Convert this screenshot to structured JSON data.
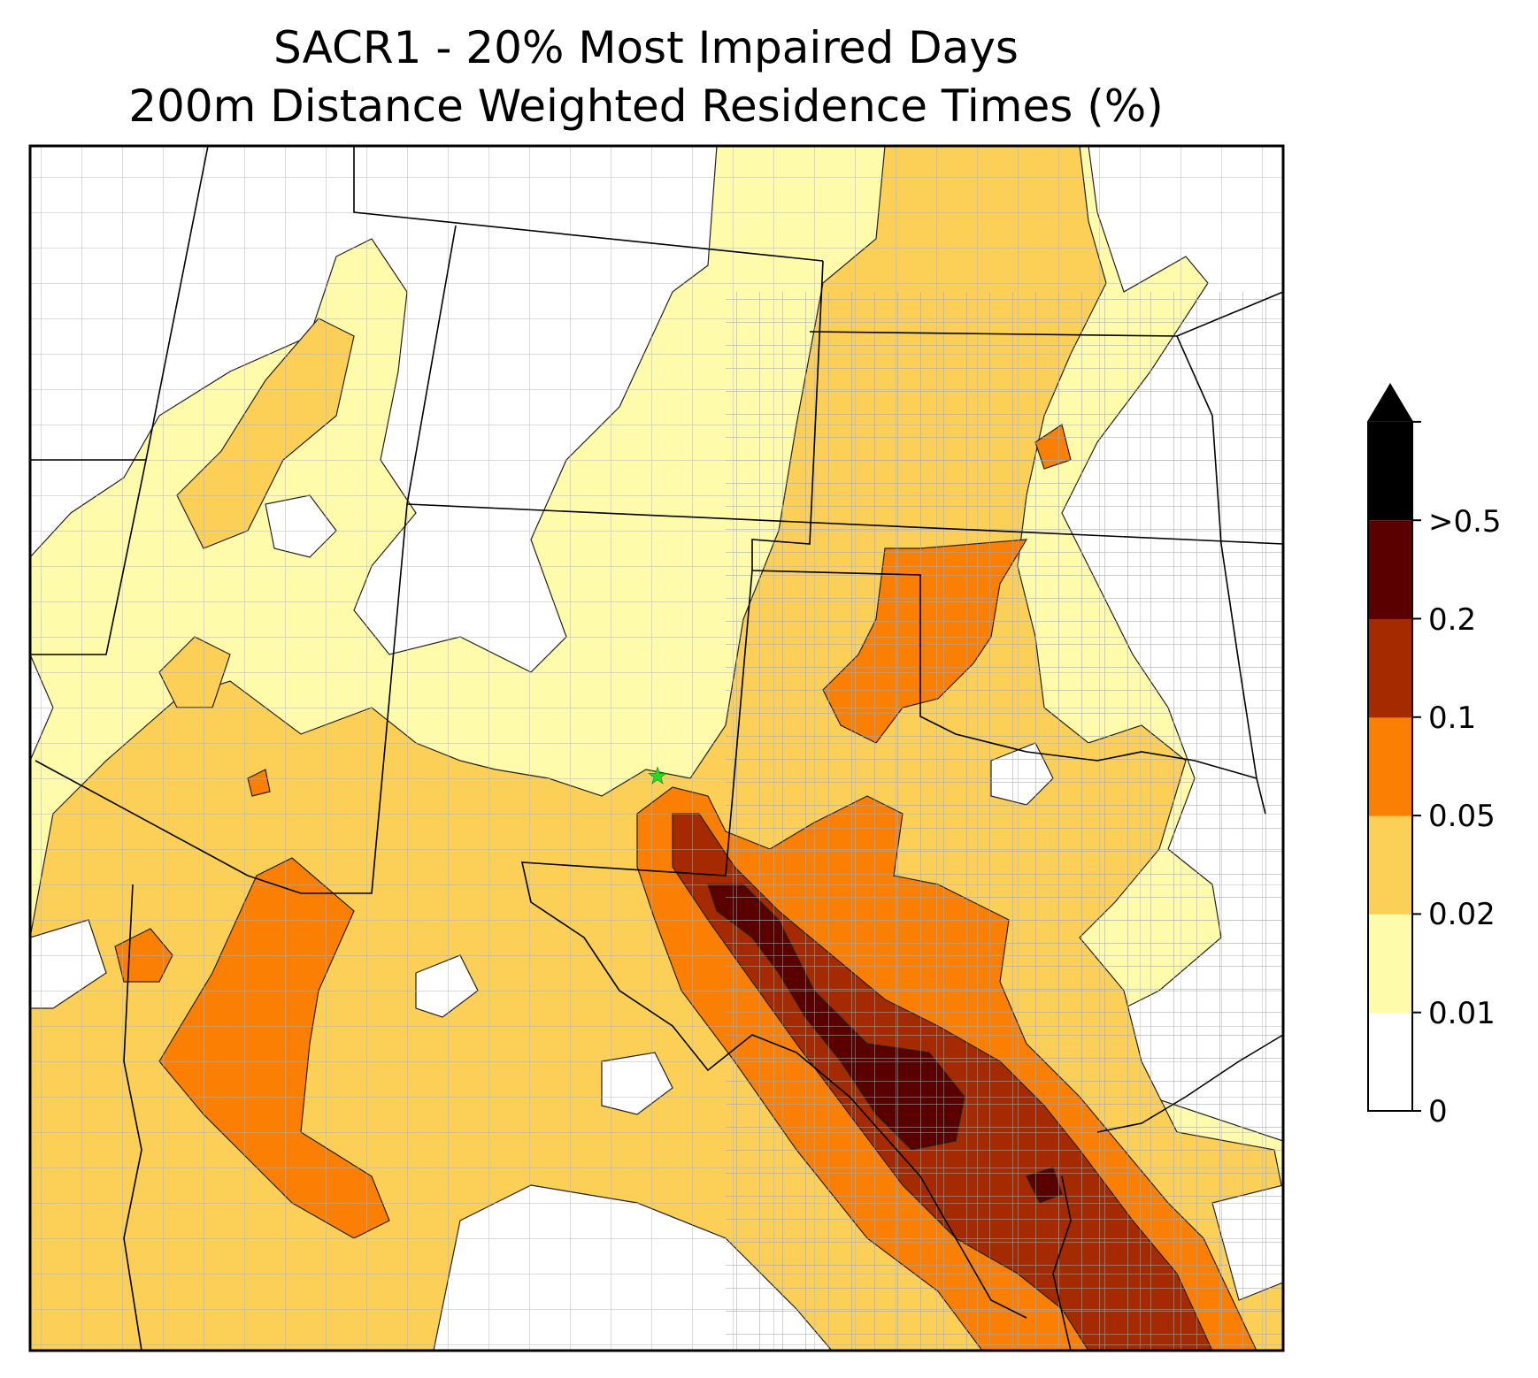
{
  "title": {
    "line1": "SACR1 - 20% Most Impaired Days",
    "line2": "200m Distance Weighted Residence Times (%)"
  },
  "site_marker": {
    "color": "#22dd22",
    "shape": "star"
  },
  "colorbar": {
    "extend": "max",
    "levels": [
      {
        "label": "0",
        "color": "#ffffff"
      },
      {
        "label": "0.01",
        "color": "#fefcab"
      },
      {
        "label": "0.02",
        "color": "#fccf57"
      },
      {
        "label": "0.05",
        "color": "#fb7f03"
      },
      {
        "label": "0.1",
        "color": "#a52a00"
      },
      {
        "label": "0.2",
        "color": "#5a0000"
      },
      {
        "label": ">0.5",
        "color": "#000000"
      }
    ]
  }
}
